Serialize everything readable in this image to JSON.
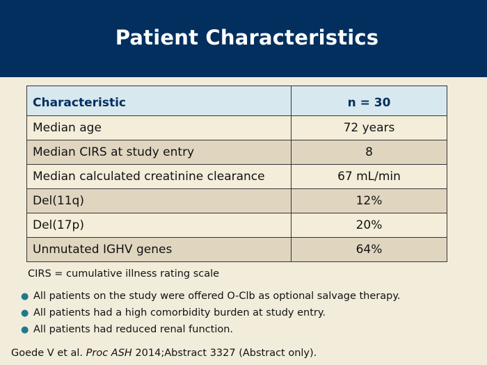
{
  "title": "Patient Characteristics",
  "table": {
    "headers": [
      "Characteristic",
      "n = 30"
    ],
    "rows": [
      [
        "Median age",
        "72 years"
      ],
      [
        "Median CIRS at study entry",
        "8"
      ],
      [
        "Median calculated creatinine clearance",
        "67 mL/min"
      ],
      [
        "Del(11q)",
        "12%"
      ],
      [
        "Del(17p)",
        "20%"
      ],
      [
        "Unmutated IGHV genes",
        "64%"
      ]
    ]
  },
  "footnote": "CIRS = cumulative illness rating scale",
  "bullets": [
    "All patients on the study were offered O-Clb as optional salvage therapy.",
    "All patients had a high comorbidity burden at study entry.",
    "All patients had reduced renal function."
  ],
  "reference": {
    "authors": "Goede V et al.",
    "journal": "Proc ASH",
    "details": "2014;Abstract 3327 (Abstract only)."
  },
  "colors": {
    "title_bar": "#022f5e",
    "background": "#f2ecdb",
    "header_fill": "#d8e8ef",
    "row_alt_fill": "#e0d6c0",
    "bullet": "#1f7a8c"
  }
}
